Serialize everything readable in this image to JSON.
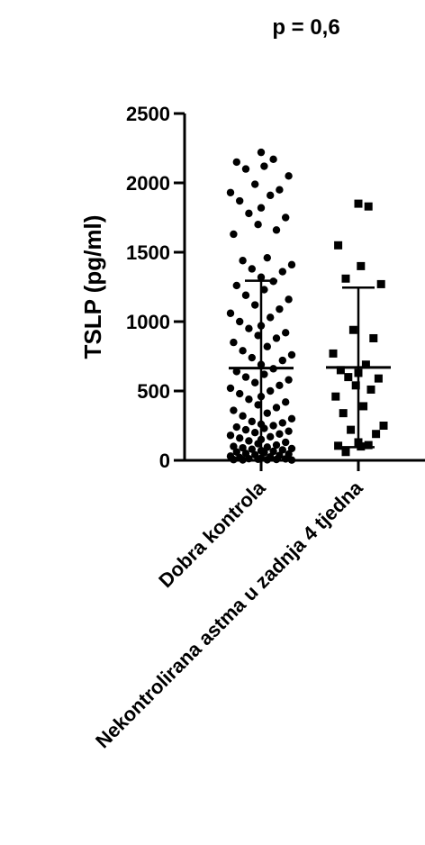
{
  "chart_data": {
    "type": "scatter",
    "annotation": "p = 0,6",
    "ylabel": "TSLP (pg/ml)",
    "xlabel": "",
    "ylim": [
      0,
      2500
    ],
    "yticks": [
      0,
      500,
      1000,
      1500,
      2000,
      2500
    ],
    "categories": [
      "Dobra kontrola",
      "Nekontrolirana astma u zadnja 4 tjedna"
    ],
    "series": [
      {
        "category": "Dobra kontrola",
        "marker": "circle",
        "mean": 665,
        "sd_upper": 1295,
        "values": [
          2220,
          2170,
          2150,
          2120,
          2100,
          2050,
          1990,
          1950,
          1930,
          1910,
          1870,
          1820,
          1780,
          1750,
          1700,
          1660,
          1630,
          1460,
          1440,
          1410,
          1380,
          1360,
          1320,
          1290,
          1260,
          1230,
          1190,
          1160,
          1120,
          1090,
          1060,
          1030,
          1000,
          970,
          950,
          920,
          900,
          880,
          850,
          820,
          790,
          760,
          740,
          720,
          690,
          660,
          640,
          620,
          600,
          580,
          560,
          540,
          520,
          500,
          480,
          460,
          440,
          420,
          400,
          380,
          360,
          340,
          320,
          300,
          280,
          270,
          260,
          250,
          240,
          230,
          220,
          210,
          200,
          190,
          180,
          170,
          160,
          150,
          140,
          130,
          120,
          110,
          100,
          95,
          90,
          85,
          80,
          75,
          70,
          65,
          60,
          55,
          50,
          45,
          40,
          35,
          30,
          25,
          20,
          15,
          12,
          10,
          8,
          6,
          5,
          4,
          3,
          2
        ]
      },
      {
        "category": "Nekontrolirana astma u zadnja 4 tjedna",
        "marker": "square",
        "mean": 670,
        "sd_upper": 1245,
        "sd_lower": 95,
        "values": [
          1850,
          1830,
          1550,
          1400,
          1310,
          1270,
          940,
          880,
          770,
          690,
          650,
          630,
          600,
          590,
          540,
          510,
          460,
          390,
          340,
          250,
          220,
          190,
          130,
          110,
          105,
          100,
          60
        ]
      }
    ],
    "grid": false,
    "legend": "none"
  }
}
